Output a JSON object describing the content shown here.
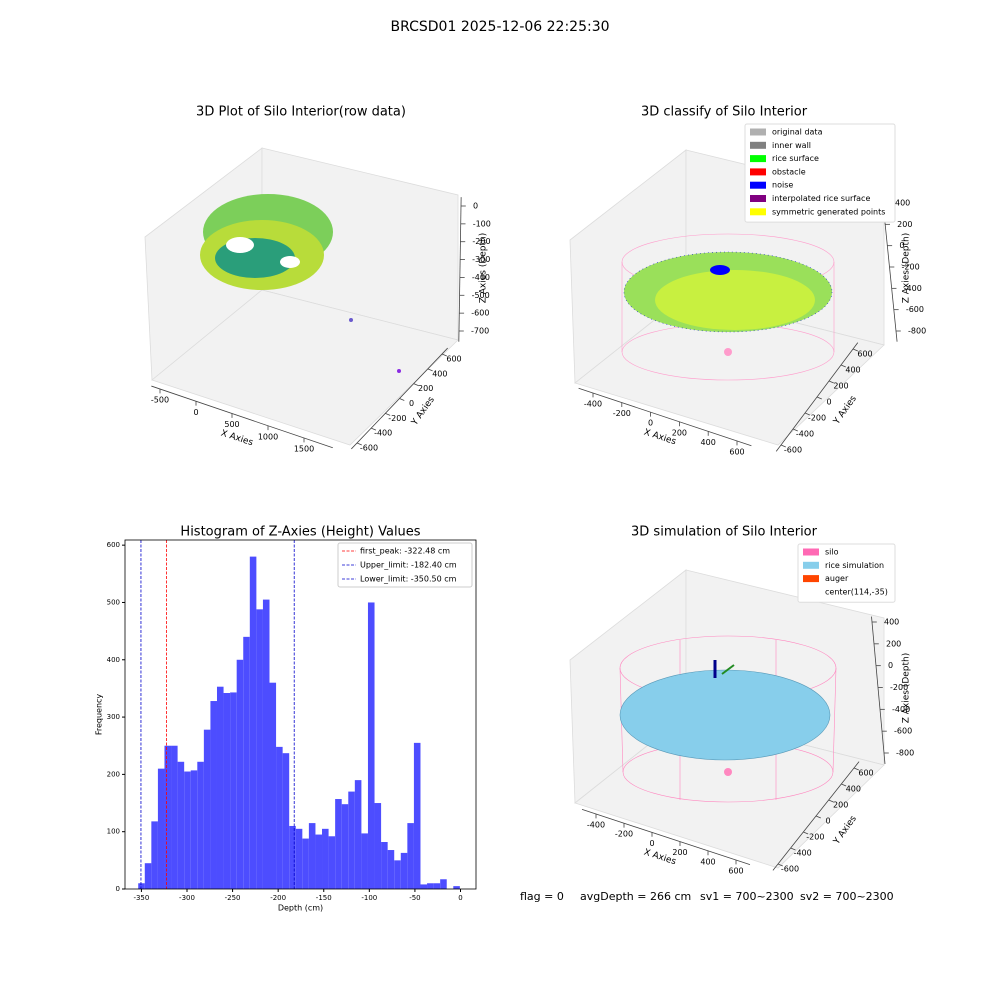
{
  "title": "BRCSD01 2025-12-06 22:25:30",
  "footer": [
    "flag = 0",
    "avgDepth = 266 cm",
    "sv1 = 700~2300",
    "sv2 = 700~2300"
  ],
  "chart_data": [
    {
      "type": "scatter3d",
      "title": "3D Plot of Silo Interior(row data)",
      "xlabel": "X Axies",
      "ylabel": "Y Axies",
      "zlabel": "Z Axies (Depth)",
      "xlim": [
        -620,
        1900
      ],
      "xticks": [
        -500,
        0,
        500,
        1000,
        1500
      ],
      "ylim": [
        -680,
        680
      ],
      "yticks": [
        -600,
        -400,
        -200,
        0,
        200,
        400,
        600
      ],
      "zlim": [
        -760,
        50
      ],
      "zticks": [
        0,
        -100,
        -200,
        -300,
        -400,
        -500,
        -600,
        -700
      ]
    },
    {
      "type": "scatter3d",
      "title": "3D classify of Silo Interior",
      "xlabel": "X Axies",
      "ylabel": "Y Axies",
      "zlabel": "Z Axies (Depth)",
      "xlim": [
        -500,
        700
      ],
      "xticks": [
        -400,
        -200,
        0,
        200,
        400,
        600
      ],
      "ylim": [
        -680,
        680
      ],
      "yticks": [
        -600,
        -400,
        -200,
        0,
        200,
        400,
        600
      ],
      "zlim": [
        -900,
        420
      ],
      "zticks": [
        400,
        200,
        0,
        -200,
        -400,
        -600,
        -800
      ],
      "legend": [
        {
          "name": "original data",
          "color": "#b0b0b0"
        },
        {
          "name": "inner wall",
          "color": "#808080"
        },
        {
          "name": "rice surface",
          "color": "#00ff00"
        },
        {
          "name": "obstacle",
          "color": "#ff0000"
        },
        {
          "name": "noise",
          "color": "#0000ff"
        },
        {
          "name": "interpolated rice surface",
          "color": "#800080"
        },
        {
          "name": "symmetric generated points",
          "color": "#ffff00"
        }
      ]
    },
    {
      "type": "histogram",
      "title": "Histogram of Z-Axies (Height) Values",
      "xlabel": "Depth (cm)",
      "ylabel": "Frequency",
      "color": "#4d4dff",
      "bins": [
        -353.5,
        -346.3,
        -339.1,
        -331.9,
        -324.7,
        -317.5,
        -310.3,
        -303.1,
        -295.9,
        -288.7,
        -281.5,
        -274.3,
        -267.1,
        -259.9,
        -252.7,
        -245.5,
        -238.3,
        -231.1,
        -223.9,
        -216.7,
        -209.5,
        -202.3,
        -195.1,
        -187.9,
        -180.7,
        -173.5,
        -166.3,
        -159.1,
        -151.9,
        -144.7,
        -137.5,
        -130.3,
        -123.1,
        -115.9,
        -108.7,
        -101.5,
        -94.3,
        -87.1,
        -79.9,
        -72.7,
        -65.5,
        -58.3,
        -51.1,
        -43.9,
        -36.7,
        -29.5,
        -22.3,
        -15.1,
        -7.9,
        -0.7
      ],
      "counts": [
        10,
        45,
        118,
        210,
        250,
        250,
        222,
        205,
        207,
        222,
        278,
        328,
        353,
        342,
        343,
        400,
        440,
        580,
        488,
        505,
        360,
        248,
        237,
        110,
        105,
        88,
        115,
        95,
        105,
        92,
        157,
        148,
        170,
        190,
        97,
        500,
        150,
        82,
        68,
        50,
        63,
        115,
        255,
        8,
        10,
        10,
        17,
        0,
        5
      ],
      "lines": [
        {
          "name": "first_peak: -322.48 cm",
          "value": -322.48,
          "color": "#ff0000"
        },
        {
          "name": "Upper_limit: -182.40 cm",
          "value": -182.4,
          "color": "#0000cc"
        },
        {
          "name": "Lower_limit: -350.50 cm",
          "value": -350.5,
          "color": "#0000cc"
        }
      ],
      "legend_position": "upper right",
      "xlim": [
        -368,
        17
      ],
      "xticks": [
        -350,
        -300,
        -250,
        -200,
        -150,
        -100,
        -50,
        0
      ],
      "ylim": [
        0,
        609
      ],
      "yticks": [
        0,
        100,
        200,
        300,
        400,
        500,
        600
      ]
    },
    {
      "type": "surface3d",
      "title": "3D simulation of Silo Interior",
      "xlabel": "X Axies",
      "ylabel": "Y Axies",
      "zlabel": "Z Axies (Depth)",
      "xlim": [
        -500,
        700
      ],
      "xticks": [
        -400,
        -200,
        0,
        200,
        400,
        600
      ],
      "ylim": [
        -680,
        680
      ],
      "yticks": [
        -600,
        -400,
        -200,
        0,
        200,
        400,
        600
      ],
      "zlim": [
        -900,
        450
      ],
      "zticks": [
        400,
        200,
        0,
        -200,
        -400,
        -600,
        -800
      ],
      "legend": [
        {
          "name": "silo",
          "color": "#ff69b4"
        },
        {
          "name": "rice simulation",
          "color": "#87ceeb"
        },
        {
          "name": "auger",
          "color": "#ff4500"
        },
        {
          "name": "center(114,-35)"
        }
      ]
    }
  ]
}
